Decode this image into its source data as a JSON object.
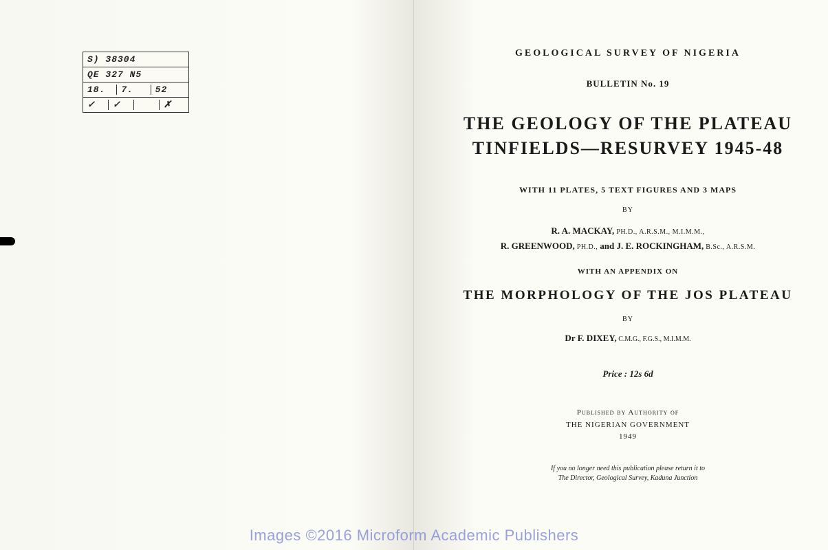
{
  "leftPage": {
    "stamp": {
      "row1": "S) 38304",
      "row2": "QE  327  N5",
      "row3": {
        "a": "18.",
        "b": "7.",
        "c": "52"
      },
      "row4": {
        "a": "✓",
        "b": "✓",
        "c": "",
        "d": "✗"
      }
    }
  },
  "rightPage": {
    "surveyHeader": "GEOLOGICAL SURVEY OF NIGERIA",
    "bulletin": "BULLETIN No. 19",
    "title1": "THE GEOLOGY OF THE PLATEAU",
    "title2": "TINFIELDS—RESURVEY 1945-48",
    "platesLine": "WITH 11 PLATES, 5 TEXT FIGURES AND 3 MAPS",
    "by": "BY",
    "author1_name": "R. A. MACKAY,",
    "author1_creds": " PH.D., A.R.S.M., M.I.M.M.,",
    "author2_name": "R. GREENWOOD,",
    "author2_creds": " PH.D., ",
    "author2_and": "and ",
    "author3_name": "J. E. ROCKINGHAM,",
    "author3_creds": " B.Sc., A.R.S.M.",
    "appendixOn": "WITH AN APPENDIX ON",
    "appendixTitle": "THE MORPHOLOGY OF THE JOS PLATEAU",
    "appendixBy": "BY",
    "appendixAuthor_name": "Dr F. DIXEY,",
    "appendixAuthor_creds": " C.M.G., F.G.S., M.I.M.M.",
    "price": "Price : 12s 6d",
    "publisher1": "Published by Authority of",
    "publisher2": "THE NIGERIAN GOVERNMENT",
    "publisher3": "1949",
    "returnNote1": "If you no longer need this publication please return it to",
    "returnNote2": "The Director, Geological Survey, Kaduna Junction"
  },
  "watermark": "Images ©2016 Microform Academic Publishers"
}
